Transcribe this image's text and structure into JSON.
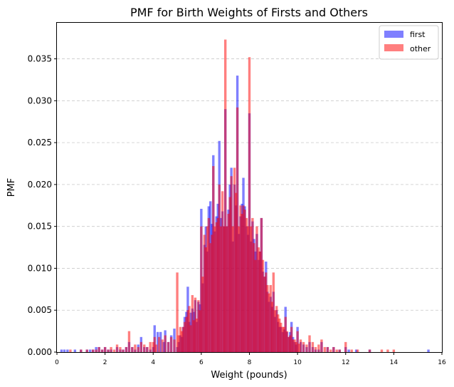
{
  "chart_data": {
    "type": "bar",
    "title": "PMF for Birth Weights of Firsts and Others",
    "xlabel": "Weight (pounds)",
    "ylabel": "PMF",
    "xlim": [
      0,
      16
    ],
    "ylim": [
      0,
      0.0393
    ],
    "grid": "y-dashed",
    "legend_position": "top-right",
    "x_ticks": [
      0,
      2,
      4,
      6,
      8,
      10,
      12,
      14,
      16
    ],
    "x_tick_labels": [
      "0",
      "2",
      "4",
      "6",
      "8",
      "10",
      "12",
      "14",
      "16"
    ],
    "y_ticks": [
      0.0,
      0.005,
      0.01,
      0.015,
      0.02,
      0.025,
      0.03,
      0.035
    ],
    "y_tick_labels": [
      "0.000",
      "0.005",
      "0.010",
      "0.015",
      "0.020",
      "0.025",
      "0.030",
      "0.035"
    ],
    "bar_width": 0.1,
    "series": [
      {
        "name": "first",
        "color": "#0000ff",
        "alpha": 0.5,
        "points": [
          [
            0.19,
            0.0003
          ],
          [
            0.31,
            0.0003
          ],
          [
            0.44,
            0.0003
          ],
          [
            0.75,
            0.0003
          ],
          [
            1.0,
            0.0003
          ],
          [
            1.25,
            0.0003
          ],
          [
            1.38,
            0.0003
          ],
          [
            1.5,
            0.0003
          ],
          [
            1.63,
            0.0006
          ],
          [
            1.75,
            0.0006
          ],
          [
            1.88,
            0.0003
          ],
          [
            2.0,
            0.0006
          ],
          [
            2.13,
            0.0003
          ],
          [
            2.25,
            0.0003
          ],
          [
            2.5,
            0.0006
          ],
          [
            2.63,
            0.0003
          ],
          [
            2.75,
            0.0003
          ],
          [
            2.88,
            0.0006
          ],
          [
            3.0,
            0.0012
          ],
          [
            3.13,
            0.0006
          ],
          [
            3.25,
            0.0003
          ],
          [
            3.38,
            0.0009
          ],
          [
            3.5,
            0.0018
          ],
          [
            3.63,
            0.0006
          ],
          [
            3.75,
            0.0006
          ],
          [
            3.88,
            0.0003
          ],
          [
            4.0,
            0.0006
          ],
          [
            4.06,
            0.0032
          ],
          [
            4.19,
            0.0024
          ],
          [
            4.31,
            0.0024
          ],
          [
            4.44,
            0.0012
          ],
          [
            4.5,
            0.0026
          ],
          [
            4.63,
            0.0012
          ],
          [
            4.75,
            0.002
          ],
          [
            4.88,
            0.0028
          ],
          [
            5.0,
            0.0006
          ],
          [
            5.06,
            0.0012
          ],
          [
            5.13,
            0.002
          ],
          [
            5.19,
            0.0018
          ],
          [
            5.25,
            0.003
          ],
          [
            5.31,
            0.0042
          ],
          [
            5.38,
            0.0048
          ],
          [
            5.44,
            0.0078
          ],
          [
            5.5,
            0.0036
          ],
          [
            5.56,
            0.0047
          ],
          [
            5.63,
            0.0052
          ],
          [
            5.69,
            0.0048
          ],
          [
            5.75,
            0.0062
          ],
          [
            5.81,
            0.0036
          ],
          [
            5.88,
            0.006
          ],
          [
            5.94,
            0.0057
          ],
          [
            6.0,
            0.0171
          ],
          [
            6.06,
            0.0082
          ],
          [
            6.13,
            0.0128
          ],
          [
            6.19,
            0.015
          ],
          [
            6.25,
            0.012
          ],
          [
            6.31,
            0.0174
          ],
          [
            6.38,
            0.018
          ],
          [
            6.44,
            0.0153
          ],
          [
            6.5,
            0.0235
          ],
          [
            6.56,
            0.0144
          ],
          [
            6.63,
            0.0162
          ],
          [
            6.69,
            0.0177
          ],
          [
            6.75,
            0.0252
          ],
          [
            6.81,
            0.016
          ],
          [
            6.88,
            0.0168
          ],
          [
            6.94,
            0.015
          ],
          [
            7.0,
            0.029
          ],
          [
            7.06,
            0.015
          ],
          [
            7.13,
            0.017
          ],
          [
            7.19,
            0.02
          ],
          [
            7.25,
            0.022
          ],
          [
            7.31,
            0.0132
          ],
          [
            7.38,
            0.02
          ],
          [
            7.44,
            0.0175
          ],
          [
            7.5,
            0.033
          ],
          [
            7.56,
            0.0141
          ],
          [
            7.63,
            0.0162
          ],
          [
            7.69,
            0.0177
          ],
          [
            7.75,
            0.0208
          ],
          [
            7.81,
            0.0174
          ],
          [
            7.88,
            0.015
          ],
          [
            7.94,
            0.014
          ],
          [
            8.0,
            0.0285
          ],
          [
            8.06,
            0.0132
          ],
          [
            8.13,
            0.0156
          ],
          [
            8.19,
            0.0135
          ],
          [
            8.25,
            0.012
          ],
          [
            8.31,
            0.0141
          ],
          [
            8.38,
            0.011
          ],
          [
            8.44,
            0.012
          ],
          [
            8.5,
            0.016
          ],
          [
            8.56,
            0.0096
          ],
          [
            8.63,
            0.009
          ],
          [
            8.69,
            0.0108
          ],
          [
            8.75,
            0.0072
          ],
          [
            8.81,
            0.006
          ],
          [
            8.88,
            0.0066
          ],
          [
            8.94,
            0.0054
          ],
          [
            9.0,
            0.0072
          ],
          [
            9.06,
            0.0042
          ],
          [
            9.13,
            0.005
          ],
          [
            9.19,
            0.0036
          ],
          [
            9.25,
            0.003
          ],
          [
            9.31,
            0.003
          ],
          [
            9.38,
            0.0024
          ],
          [
            9.44,
            0.0027
          ],
          [
            9.5,
            0.0054
          ],
          [
            9.56,
            0.0024
          ],
          [
            9.63,
            0.0018
          ],
          [
            9.69,
            0.0024
          ],
          [
            9.75,
            0.0036
          ],
          [
            9.81,
            0.0018
          ],
          [
            9.88,
            0.0012
          ],
          [
            9.94,
            0.0009
          ],
          [
            10.0,
            0.003
          ],
          [
            10.13,
            0.0012
          ],
          [
            10.25,
            0.0009
          ],
          [
            10.38,
            0.0006
          ],
          [
            10.5,
            0.0012
          ],
          [
            10.63,
            0.0006
          ],
          [
            10.75,
            0.0003
          ],
          [
            10.88,
            0.0003
          ],
          [
            11.0,
            0.0012
          ],
          [
            11.25,
            0.0006
          ],
          [
            11.5,
            0.0006
          ],
          [
            11.75,
            0.0003
          ],
          [
            12.0,
            0.0006
          ],
          [
            12.13,
            0.0003
          ],
          [
            12.44,
            0.0003
          ],
          [
            13.0,
            0.0003
          ],
          [
            15.44,
            0.0003
          ]
        ]
      },
      {
        "name": "other",
        "color": "#ff0000",
        "alpha": 0.5,
        "points": [
          [
            0.56,
            0.0003
          ],
          [
            1.0,
            0.0003
          ],
          [
            1.25,
            0.0003
          ],
          [
            1.5,
            0.0003
          ],
          [
            1.63,
            0.0003
          ],
          [
            1.75,
            0.0006
          ],
          [
            1.88,
            0.0003
          ],
          [
            2.0,
            0.0006
          ],
          [
            2.13,
            0.0003
          ],
          [
            2.25,
            0.0006
          ],
          [
            2.38,
            0.0003
          ],
          [
            2.5,
            0.0009
          ],
          [
            2.63,
            0.0006
          ],
          [
            2.75,
            0.0003
          ],
          [
            2.88,
            0.0006
          ],
          [
            3.0,
            0.0025
          ],
          [
            3.13,
            0.0006
          ],
          [
            3.25,
            0.0009
          ],
          [
            3.38,
            0.0006
          ],
          [
            3.5,
            0.0012
          ],
          [
            3.63,
            0.0009
          ],
          [
            3.75,
            0.0006
          ],
          [
            3.88,
            0.0012
          ],
          [
            4.0,
            0.0012
          ],
          [
            4.06,
            0.0018
          ],
          [
            4.13,
            0.0009
          ],
          [
            4.25,
            0.0018
          ],
          [
            4.38,
            0.0015
          ],
          [
            4.5,
            0.002
          ],
          [
            4.63,
            0.0012
          ],
          [
            4.75,
            0.0018
          ],
          [
            4.88,
            0.0015
          ],
          [
            5.0,
            0.0095
          ],
          [
            5.06,
            0.002
          ],
          [
            5.13,
            0.003
          ],
          [
            5.19,
            0.0025
          ],
          [
            5.25,
            0.003
          ],
          [
            5.31,
            0.0036
          ],
          [
            5.38,
            0.0042
          ],
          [
            5.44,
            0.005
          ],
          [
            5.5,
            0.0055
          ],
          [
            5.56,
            0.0032
          ],
          [
            5.63,
            0.0068
          ],
          [
            5.69,
            0.0038
          ],
          [
            5.75,
            0.0065
          ],
          [
            5.81,
            0.004
          ],
          [
            5.88,
            0.0062
          ],
          [
            5.94,
            0.005
          ],
          [
            6.0,
            0.015
          ],
          [
            6.06,
            0.009
          ],
          [
            6.13,
            0.014
          ],
          [
            6.19,
            0.0125
          ],
          [
            6.25,
            0.015
          ],
          [
            6.31,
            0.016
          ],
          [
            6.38,
            0.013
          ],
          [
            6.44,
            0.014
          ],
          [
            6.5,
            0.0222
          ],
          [
            6.56,
            0.015
          ],
          [
            6.63,
            0.0155
          ],
          [
            6.69,
            0.016
          ],
          [
            6.75,
            0.02
          ],
          [
            6.81,
            0.015
          ],
          [
            6.88,
            0.0192
          ],
          [
            6.94,
            0.015
          ],
          [
            7.0,
            0.0373
          ],
          [
            7.06,
            0.015
          ],
          [
            7.13,
            0.0165
          ],
          [
            7.19,
            0.0185
          ],
          [
            7.25,
            0.021
          ],
          [
            7.31,
            0.015
          ],
          [
            7.38,
            0.022
          ],
          [
            7.44,
            0.019
          ],
          [
            7.5,
            0.0292
          ],
          [
            7.56,
            0.015
          ],
          [
            7.63,
            0.0175
          ],
          [
            7.69,
            0.0165
          ],
          [
            7.75,
            0.0175
          ],
          [
            7.81,
            0.017
          ],
          [
            7.88,
            0.016
          ],
          [
            7.94,
            0.015
          ],
          [
            8.0,
            0.0352
          ],
          [
            8.06,
            0.015
          ],
          [
            8.13,
            0.016
          ],
          [
            8.19,
            0.013
          ],
          [
            8.25,
            0.011
          ],
          [
            8.31,
            0.015
          ],
          [
            8.38,
            0.0125
          ],
          [
            8.44,
            0.012
          ],
          [
            8.5,
            0.016
          ],
          [
            8.56,
            0.011
          ],
          [
            8.63,
            0.009
          ],
          [
            8.69,
            0.0095
          ],
          [
            8.75,
            0.008
          ],
          [
            8.81,
            0.007
          ],
          [
            8.88,
            0.008
          ],
          [
            8.94,
            0.006
          ],
          [
            9.0,
            0.0095
          ],
          [
            9.06,
            0.005
          ],
          [
            9.13,
            0.0055
          ],
          [
            9.19,
            0.0045
          ],
          [
            9.25,
            0.004
          ],
          [
            9.31,
            0.0035
          ],
          [
            9.38,
            0.003
          ],
          [
            9.44,
            0.003
          ],
          [
            9.5,
            0.0042
          ],
          [
            9.56,
            0.0025
          ],
          [
            9.63,
            0.0018
          ],
          [
            9.69,
            0.002
          ],
          [
            9.75,
            0.003
          ],
          [
            9.81,
            0.0015
          ],
          [
            9.88,
            0.0015
          ],
          [
            9.94,
            0.0012
          ],
          [
            10.0,
            0.0025
          ],
          [
            10.06,
            0.001
          ],
          [
            10.13,
            0.0015
          ],
          [
            10.25,
            0.0012
          ],
          [
            10.38,
            0.0009
          ],
          [
            10.5,
            0.002
          ],
          [
            10.63,
            0.0012
          ],
          [
            10.75,
            0.0006
          ],
          [
            10.88,
            0.0009
          ],
          [
            11.0,
            0.0015
          ],
          [
            11.13,
            0.0006
          ],
          [
            11.25,
            0.0006
          ],
          [
            11.38,
            0.0003
          ],
          [
            11.5,
            0.0006
          ],
          [
            11.63,
            0.0003
          ],
          [
            11.75,
            0.0003
          ],
          [
            12.0,
            0.0012
          ],
          [
            12.25,
            0.0003
          ],
          [
            12.5,
            0.0003
          ],
          [
            13.0,
            0.0003
          ],
          [
            13.5,
            0.0003
          ],
          [
            13.75,
            0.0003
          ],
          [
            14.0,
            0.0003
          ]
        ]
      }
    ]
  }
}
